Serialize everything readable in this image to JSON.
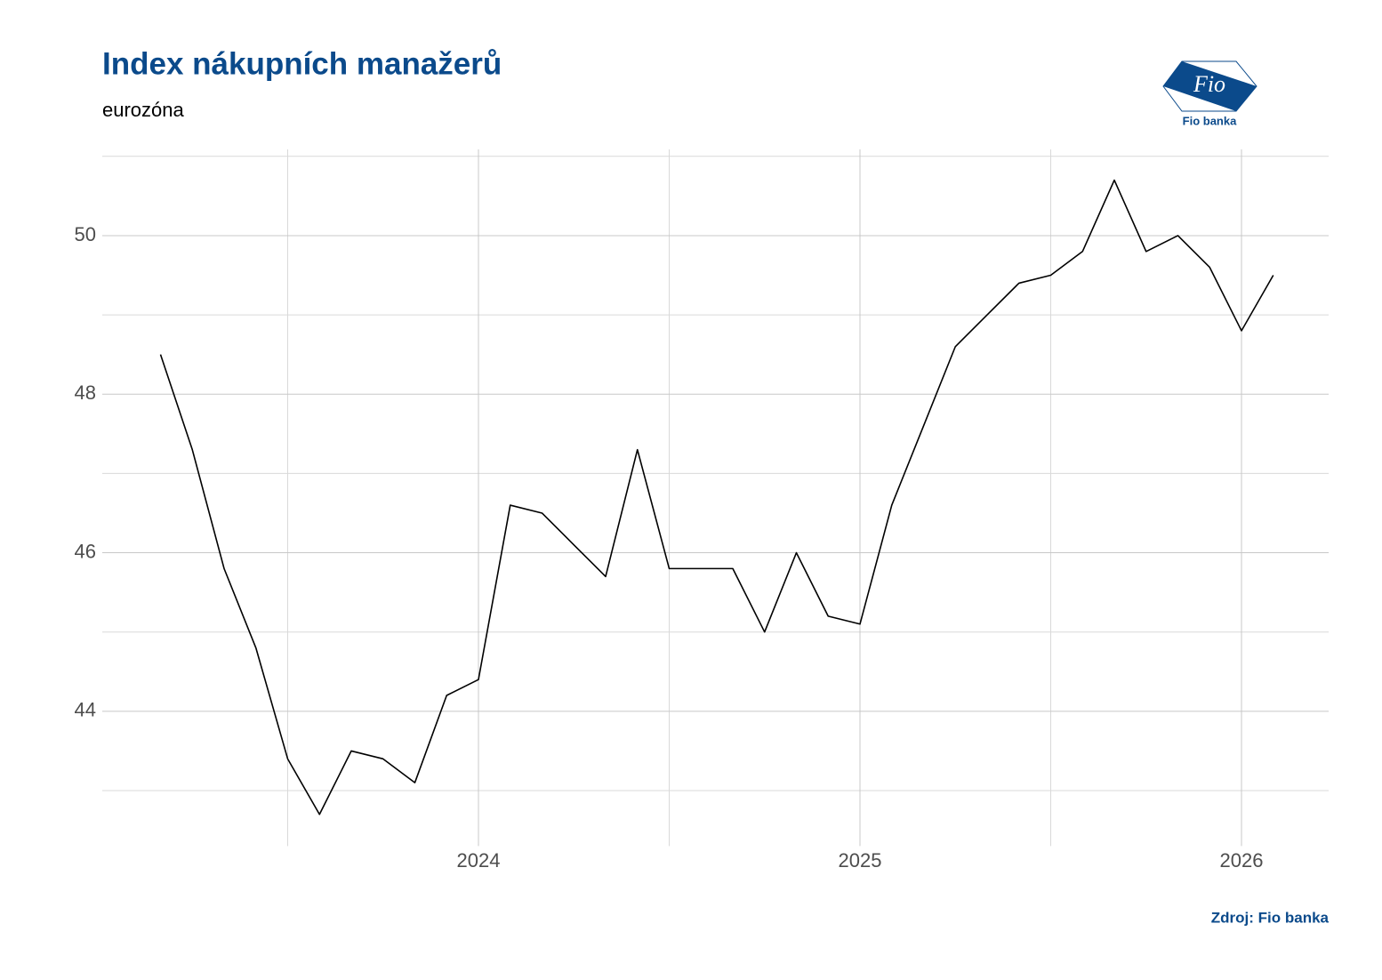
{
  "chart_data": {
    "type": "line",
    "title": "Index nákupních manažerů",
    "subtitle": "eurozóna",
    "source": "Zdroj: Fio banka",
    "logo": {
      "mark": "Fio",
      "caption": "Fio banka"
    },
    "x": [
      "2023-03",
      "2023-04",
      "2023-05",
      "2023-06",
      "2023-07",
      "2023-08",
      "2023-09",
      "2023-10",
      "2023-11",
      "2023-12",
      "2024-01",
      "2024-02",
      "2024-03",
      "2024-04",
      "2024-05",
      "2024-06",
      "2024-07",
      "2024-08",
      "2024-09",
      "2024-10",
      "2024-11",
      "2024-12",
      "2025-01",
      "2025-02",
      "2025-03",
      "2025-04",
      "2025-05",
      "2025-06",
      "2025-07",
      "2025-08",
      "2025-09",
      "2025-10",
      "2025-11",
      "2025-12",
      "2026-01",
      "2026-02"
    ],
    "series": [
      {
        "color": "#000000",
        "values": [
          48.5,
          47.3,
          45.8,
          44.8,
          43.4,
          42.7,
          43.5,
          43.4,
          43.1,
          44.2,
          44.4,
          46.6,
          46.5,
          46.1,
          45.7,
          47.3,
          45.8,
          45.8,
          45.8,
          45.0,
          46.0,
          45.2,
          45.1,
          46.6,
          47.6,
          48.6,
          49.0,
          49.4,
          49.5,
          49.8,
          50.7,
          49.8,
          50.0,
          49.6,
          48.8,
          49.5
        ]
      }
    ],
    "xlim": [
      "2023-01",
      "2026-04"
    ],
    "xticks": [
      {
        "value": "2024-01",
        "label": "2024"
      },
      {
        "value": "2025-01",
        "label": "2025"
      },
      {
        "value": "2026-01",
        "label": "2026"
      }
    ],
    "xminorticks": [
      "2023-07",
      "2024-07",
      "2025-07"
    ],
    "ylim": [
      42.3,
      51.0
    ],
    "yticks": [
      44,
      46,
      48,
      50
    ],
    "yminorticks": [
      43,
      45,
      47,
      49,
      51
    ],
    "grid": true
  }
}
